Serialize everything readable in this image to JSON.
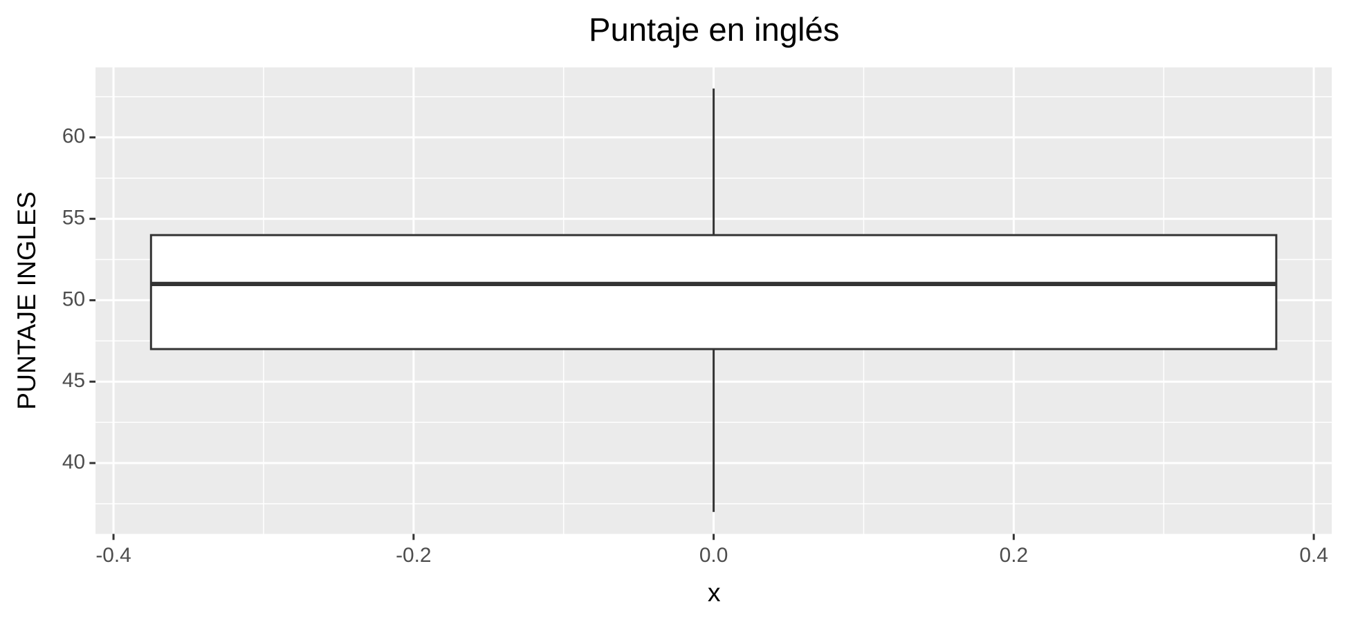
{
  "chart_data": {
    "type": "boxplot",
    "title": "Puntaje en inglés",
    "x_label": "x",
    "y_label": "PUNTAJE INGLES",
    "x": [
      0
    ],
    "series": [
      {
        "color": "#333333",
        "fill": "#ffffff",
        "whislo": [
          37
        ],
        "q1": [
          47
        ],
        "median": [
          51
        ],
        "q3": [
          54
        ],
        "whishi": [
          63
        ]
      }
    ],
    "xlim": [
      -0.412,
      0.412
    ],
    "xticks": [
      -0.4,
      -0.2,
      {
        "value": 0,
        "label": "0.0"
      },
      0.2,
      0.4
    ],
    "ylim": [
      35.65,
      64.3
    ],
    "yticks": [
      40,
      45,
      50,
      55,
      60
    ],
    "grid": true
  }
}
